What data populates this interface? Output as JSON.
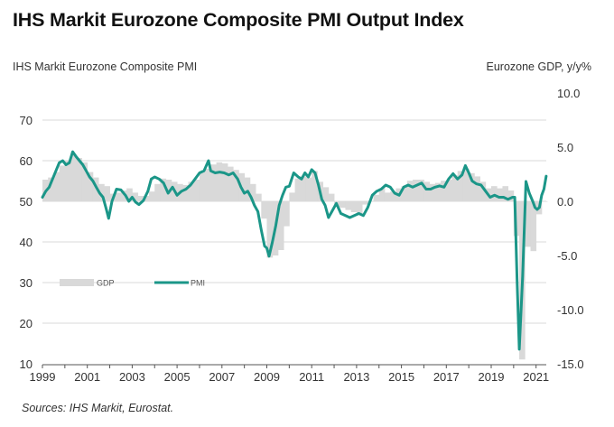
{
  "chart_data": {
    "type": "line",
    "title": "IHS Markit Eurozone Composite PMI Output Index",
    "ylabel_left": "IHS Markit Eurozone Composite  PMI",
    "ylabel_right": "Eurozone GDP, y/y%",
    "source": "Sources: IHS Markit, Eurostat.",
    "xlim": [
      1999,
      2021.45
    ],
    "ylim_left": [
      10,
      70
    ],
    "ylim_right": [
      -15,
      10
    ],
    "grid": true,
    "x_ticks": [
      "1999",
      "2001",
      "2003",
      "2005",
      "2007",
      "2009",
      "2011",
      "2013",
      "2015",
      "2017",
      "2019",
      "2021"
    ],
    "y_ticks_left": [
      "70",
      "60",
      "50",
      "40",
      "30",
      "20",
      "10"
    ],
    "y_ticks_right": [
      "10.0",
      "5.0",
      "0.0",
      "-5.0",
      "-10.0",
      "-15.0"
    ],
    "legend": {
      "position": "lower-left",
      "entries": [
        {
          "name": "GDP",
          "style": "area",
          "color": "#d9d9d9"
        },
        {
          "name": "PMI",
          "style": "line",
          "color": "#1b9688"
        }
      ]
    },
    "series": [
      {
        "name": "PMI",
        "axis": "left",
        "color": "#1b9688",
        "x": [
          1999.0,
          1999.15,
          1999.3,
          1999.45,
          1999.6,
          1999.75,
          1999.9,
          2000.05,
          2000.2,
          2000.35,
          2000.5,
          2000.65,
          2000.8,
          2000.95,
          2001.1,
          2001.25,
          2001.4,
          2001.55,
          2001.7,
          2001.85,
          2001.95,
          2002.1,
          2002.3,
          2002.5,
          2002.7,
          2002.85,
          2003.0,
          2003.15,
          2003.3,
          2003.5,
          2003.7,
          2003.85,
          2004.0,
          2004.2,
          2004.4,
          2004.6,
          2004.8,
          2005.0,
          2005.2,
          2005.4,
          2005.6,
          2005.8,
          2006.0,
          2006.2,
          2006.4,
          2006.5,
          2006.7,
          2006.9,
          2007.1,
          2007.3,
          2007.5,
          2007.7,
          2007.85,
          2008.0,
          2008.15,
          2008.3,
          2008.45,
          2008.6,
          2008.75,
          2008.9,
          2009.0,
          2009.1,
          2009.25,
          2009.4,
          2009.55,
          2009.7,
          2009.85,
          2010.0,
          2010.2,
          2010.4,
          2010.55,
          2010.7,
          2010.85,
          2011.0,
          2011.15,
          2011.3,
          2011.45,
          2011.6,
          2011.75,
          2011.9,
          2012.1,
          2012.3,
          2012.5,
          2012.7,
          2012.9,
          2013.1,
          2013.3,
          2013.5,
          2013.7,
          2013.9,
          2014.1,
          2014.3,
          2014.5,
          2014.7,
          2014.9,
          2015.1,
          2015.3,
          2015.5,
          2015.7,
          2015.9,
          2016.1,
          2016.3,
          2016.5,
          2016.7,
          2016.9,
          2017.1,
          2017.3,
          2017.5,
          2017.7,
          2017.85,
          2018.0,
          2018.15,
          2018.35,
          2018.55,
          2018.75,
          2018.95,
          2019.15,
          2019.35,
          2019.55,
          2019.75,
          2019.95,
          2020.05,
          2020.15,
          2020.25,
          2020.4,
          2020.55,
          2020.7,
          2020.85,
          2020.95,
          2021.05,
          2021.15,
          2021.25,
          2021.35,
          2021.45
        ],
        "y": [
          51.0,
          52.5,
          53.5,
          55.5,
          57.5,
          59.5,
          60.0,
          59.0,
          59.5,
          62.2,
          61.0,
          60.0,
          59.0,
          57.5,
          56.0,
          55.0,
          53.5,
          52.0,
          51.0,
          48.0,
          45.8,
          50.0,
          53.0,
          52.8,
          51.5,
          50.0,
          51.0,
          49.8,
          49.2,
          50.2,
          52.5,
          55.5,
          56.0,
          55.5,
          54.5,
          52.0,
          53.5,
          51.5,
          52.5,
          53.0,
          54.0,
          55.5,
          57.0,
          57.5,
          60.0,
          57.5,
          57.0,
          57.2,
          57.0,
          56.5,
          57.0,
          55.5,
          53.5,
          52.0,
          52.5,
          51.0,
          49.0,
          47.5,
          43.0,
          39.0,
          38.5,
          36.5,
          40.0,
          44.0,
          49.0,
          51.5,
          53.5,
          53.7,
          57.0,
          56.0,
          55.5,
          57.0,
          56.0,
          57.8,
          57.0,
          54.0,
          50.5,
          49.0,
          46.0,
          47.5,
          49.5,
          47.0,
          46.5,
          46.0,
          46.5,
          47.0,
          46.5,
          48.5,
          51.5,
          52.5,
          53.0,
          54.0,
          53.5,
          52.0,
          51.5,
          53.5,
          54.0,
          53.5,
          54.0,
          54.5,
          53.0,
          53.0,
          53.5,
          53.8,
          53.5,
          55.5,
          56.8,
          55.5,
          56.5,
          58.8,
          57.0,
          55.0,
          54.3,
          54.0,
          52.5,
          51.0,
          51.5,
          51.0,
          51.0,
          50.5,
          51.0,
          51.0,
          31.0,
          13.6,
          31.5,
          54.9,
          52.0,
          50.0,
          48.5,
          48.0,
          48.5,
          51.5,
          53.0,
          56.2
        ]
      },
      {
        "name": "GDP",
        "axis": "right",
        "color": "#d9d9d9",
        "x": [
          1999.0,
          1999.25,
          1999.5,
          1999.75,
          2000.0,
          2000.25,
          2000.5,
          2000.75,
          2001.0,
          2001.25,
          2001.5,
          2001.75,
          2002.0,
          2002.25,
          2002.5,
          2002.75,
          2003.0,
          2003.25,
          2003.5,
          2003.75,
          2004.0,
          2004.25,
          2004.5,
          2004.75,
          2005.0,
          2005.25,
          2005.5,
          2005.75,
          2006.0,
          2006.25,
          2006.5,
          2006.75,
          2007.0,
          2007.25,
          2007.5,
          2007.75,
          2008.0,
          2008.25,
          2008.5,
          2008.75,
          2009.0,
          2009.25,
          2009.5,
          2009.75,
          2010.0,
          2010.25,
          2010.5,
          2010.75,
          2011.0,
          2011.25,
          2011.5,
          2011.75,
          2012.0,
          2012.25,
          2012.5,
          2012.75,
          2013.0,
          2013.25,
          2013.5,
          2013.75,
          2014.0,
          2014.25,
          2014.5,
          2014.75,
          2015.0,
          2015.25,
          2015.5,
          2015.75,
          2016.0,
          2016.25,
          2016.5,
          2016.75,
          2017.0,
          2017.25,
          2017.5,
          2017.75,
          2018.0,
          2018.25,
          2018.5,
          2018.75,
          2019.0,
          2019.25,
          2019.5,
          2019.75,
          2020.0,
          2020.25,
          2020.5,
          2020.75,
          2021.0,
          2021.25
        ],
        "y": [
          2.0,
          2.2,
          2.7,
          3.3,
          3.7,
          4.3,
          4.0,
          3.6,
          2.7,
          2.2,
          1.6,
          1.4,
          0.7,
          0.8,
          1.0,
          1.2,
          0.8,
          0.5,
          0.5,
          0.9,
          1.6,
          2.1,
          2.0,
          1.8,
          1.6,
          1.5,
          1.8,
          2.0,
          2.7,
          3.0,
          3.4,
          3.6,
          3.5,
          3.2,
          2.9,
          2.6,
          2.2,
          1.6,
          0.7,
          -1.6,
          -5.2,
          -5.0,
          -4.5,
          -2.3,
          0.8,
          2.1,
          2.3,
          2.2,
          2.8,
          1.8,
          1.3,
          0.7,
          -0.5,
          -0.6,
          -0.8,
          -1.0,
          -1.2,
          -0.3,
          0.0,
          0.6,
          1.2,
          0.8,
          0.9,
          1.2,
          1.4,
          1.9,
          2.0,
          2.0,
          1.8,
          1.6,
          1.7,
          1.9,
          2.0,
          2.4,
          2.8,
          3.0,
          2.6,
          2.3,
          1.8,
          1.2,
          1.4,
          1.2,
          1.4,
          1.0,
          -3.2,
          -14.6,
          -4.2,
          -4.6,
          -1.2,
          0.0
        ]
      }
    ]
  }
}
